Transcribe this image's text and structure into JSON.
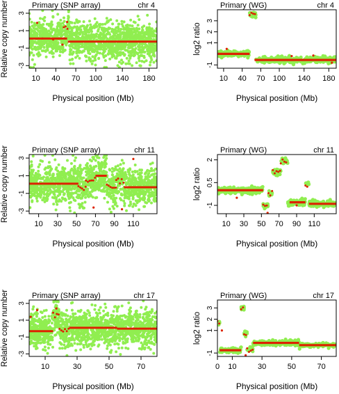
{
  "figure": {
    "colors": {
      "raw": "#90ee50",
      "segment": "#dd2200",
      "frame": "#000000"
    }
  },
  "chart_data": [
    {
      "type": "scatter",
      "title": "Primary (SNP array)",
      "chr_label": "chr 4",
      "xlabel": "Physical position (Mb)",
      "ylabel": "Relative copy number",
      "xlim": [
        0,
        192
      ],
      "ylim": [
        -3.3,
        3.4
      ],
      "xticks": [
        10,
        40,
        70,
        100,
        140,
        180
      ],
      "yticks": [
        -3,
        -1,
        1,
        3
      ],
      "noise": 1.05,
      "clip": [
        -3.2,
        3.3
      ],
      "segments": [
        {
          "x0": 0,
          "x1": 57,
          "y": 0.1
        },
        {
          "x0": 52,
          "x1": 60,
          "y": 1.5
        },
        {
          "x0": 58,
          "x1": 192,
          "y": -0.25
        }
      ],
      "outliers": [
        [
          12,
          1.9
        ],
        [
          20,
          0.1
        ],
        [
          36,
          0.0
        ],
        [
          57,
          2.0
        ],
        [
          50,
          -0.6
        ]
      ]
    },
    {
      "type": "scatter",
      "title": "Primary (WG)",
      "chr_label": "chr 4",
      "xlabel": "Physical position (Mb)",
      "ylabel": "log2 ratio",
      "xlim": [
        0,
        192
      ],
      "ylim": [
        -1.3,
        4.0
      ],
      "xticks": [
        10,
        40,
        70,
        100,
        140,
        180
      ],
      "yticks": [
        -1,
        1,
        2,
        3
      ],
      "noise": 0.14,
      "clip": [
        -1.3,
        4.0
      ],
      "segments": [
        {
          "x0": 0,
          "x1": 52,
          "y": 0.0
        },
        {
          "x0": 52,
          "x1": 62,
          "y": 3.5
        },
        {
          "x0": 60,
          "x1": 192,
          "y": -0.55
        }
      ],
      "outliers": [
        [
          15,
          0.45
        ],
        [
          120,
          -0.2
        ],
        [
          155,
          -0.15
        ],
        [
          185,
          -0.8
        ]
      ]
    },
    {
      "type": "scatter",
      "title": "Primary (SNP array)",
      "chr_label": "chr 11",
      "xlabel": "Physical position (Mb)",
      "ylabel": "Relative copy number",
      "xlim": [
        0,
        135
      ],
      "ylim": [
        -3.3,
        3.4
      ],
      "xticks": [
        10,
        30,
        50,
        70,
        90,
        110
      ],
      "yticks": [
        -3,
        -1,
        1,
        3
      ],
      "noise": 1.05,
      "clip": [
        -3.2,
        3.3
      ],
      "segments": [
        {
          "x0": 0,
          "x1": 52,
          "y": 0.1
        },
        {
          "x0": 52,
          "x1": 60,
          "y": -0.4
        },
        {
          "x0": 60,
          "x1": 70,
          "y": 0.5
        },
        {
          "x0": 70,
          "x1": 82,
          "y": 1.0
        },
        {
          "x0": 82,
          "x1": 92,
          "y": -0.2
        },
        {
          "x0": 92,
          "x1": 100,
          "y": 0.4
        },
        {
          "x0": 100,
          "x1": 135,
          "y": -0.3
        }
      ],
      "outliers": [
        [
          68,
          -2.6
        ],
        [
          98,
          -2.8
        ],
        [
          110,
          2.9
        ]
      ]
    },
    {
      "type": "scatter",
      "title": "Primary (WG)",
      "chr_label": "chr 11",
      "xlabel": "Physical position (Mb)",
      "ylabel": "log2 ratio",
      "xlim": [
        0,
        135
      ],
      "ylim": [
        -1.55,
        2.35
      ],
      "xticks": [
        10,
        30,
        50,
        70,
        90,
        110
      ],
      "yticks": [
        -1.0,
        0.5,
        2.0
      ],
      "noise": 0.1,
      "clip": [
        -1.55,
        2.35
      ],
      "segments": [
        {
          "x0": 0,
          "x1": 52,
          "y": 0.0
        },
        {
          "x0": 52,
          "x1": 58,
          "y": -1.0
        },
        {
          "x0": 58,
          "x1": 63,
          "y": -0.2
        },
        {
          "x0": 63,
          "x1": 72,
          "y": 1.2
        },
        {
          "x0": 72,
          "x1": 80,
          "y": 1.9
        },
        {
          "x0": 82,
          "x1": 100,
          "y": -0.8
        },
        {
          "x0": 100,
          "x1": 104,
          "y": 0.4
        },
        {
          "x0": 104,
          "x1": 135,
          "y": -0.9
        }
      ],
      "outliers": [
        [
          57,
          -1.5
        ],
        [
          22,
          -0.5
        ],
        [
          90,
          -1.0
        ]
      ]
    },
    {
      "type": "scatter",
      "title": "Primary (SNP array)",
      "chr_label": "chr 17",
      "xlabel": "Physical position (Mb)",
      "ylabel": "Relative copy number",
      "xlim": [
        0,
        80
      ],
      "ylim": [
        -3.3,
        3.4
      ],
      "xticks": [
        10,
        30,
        50,
        70
      ],
      "yticks": [
        -3,
        -1,
        1,
        3
      ],
      "noise": 1.05,
      "clip": [
        -3.2,
        3.3
      ],
      "segments": [
        {
          "x0": 0,
          "x1": 15,
          "y": -0.3
        },
        {
          "x0": 15,
          "x1": 19,
          "y": 1.6
        },
        {
          "x0": 19,
          "x1": 25,
          "y": -0.2
        },
        {
          "x0": 25,
          "x1": 55,
          "y": 0.1
        },
        {
          "x0": 55,
          "x1": 80,
          "y": 0.0
        }
      ],
      "outliers": [
        [
          1,
          1.4
        ],
        [
          5,
          2.2
        ],
        [
          17,
          2.4
        ]
      ]
    },
    {
      "type": "scatter",
      "title": "Primary (WG)",
      "chr_label": "chr 17",
      "xlabel": "Physical position (Mb)",
      "ylabel": "log2 ratio",
      "xlim": [
        0,
        80
      ],
      "ylim": [
        -1.3,
        3.7
      ],
      "xticks": [
        0,
        10,
        30,
        50,
        70
      ],
      "yticks": [
        -1,
        1,
        2,
        3
      ],
      "noise": 0.1,
      "clip": [
        -1.3,
        3.7
      ],
      "segments": [
        {
          "x0": 0,
          "x1": 1.5,
          "y": 1.7
        },
        {
          "x0": 1.5,
          "x1": 16,
          "y": -0.75
        },
        {
          "x0": 16,
          "x1": 18,
          "y": 3.0
        },
        {
          "x0": 18,
          "x1": 20,
          "y": 0.8
        },
        {
          "x0": 20,
          "x1": 24,
          "y": -0.7
        },
        {
          "x0": 24,
          "x1": 55,
          "y": -0.1
        },
        {
          "x0": 55,
          "x1": 80,
          "y": -0.3
        }
      ],
      "outliers": [
        [
          19,
          -1.2
        ],
        [
          3,
          1.0
        ]
      ]
    }
  ]
}
